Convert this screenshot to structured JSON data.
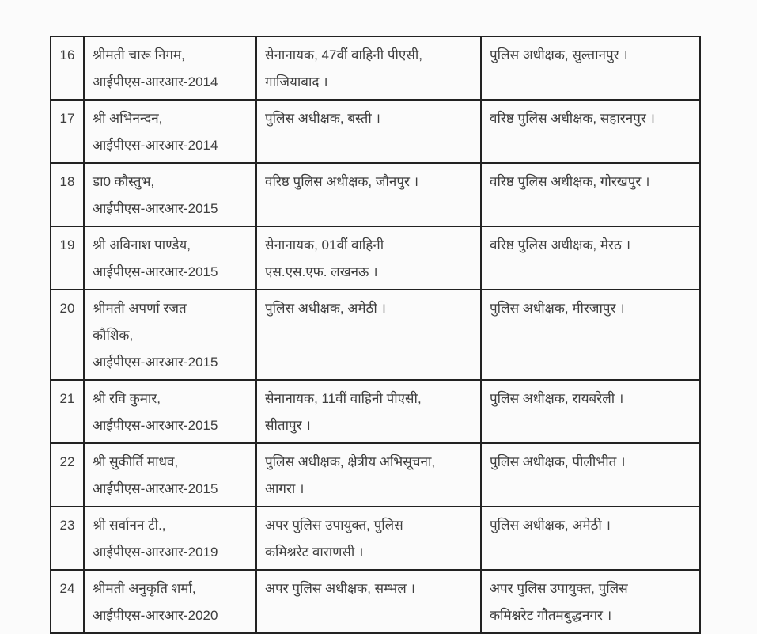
{
  "colors": {
    "page_background": "#fbfbfb",
    "cell_background": "#fbfbfb",
    "table_border": "#222222",
    "text": "#3d3d3d"
  },
  "table": {
    "rows": [
      {
        "serial": "16",
        "name": [
          "श्रीमती चारू निगम,",
          "आईपीएस-आरआर-2014"
        ],
        "current_post": [
          "सेनानायक, 47वीं वाहिनी पीएसी,",
          "गाजियाबाद ।"
        ],
        "new_post": [
          "पुलिस अधीक्षक, सुल्तानपुर ।"
        ]
      },
      {
        "serial": "17",
        "name": [
          "श्री अभिनन्दन,",
          "आईपीएस-आरआर-2014"
        ],
        "current_post": [
          "पुलिस अधीक्षक, बस्ती ।"
        ],
        "new_post": [
          "वरिष्ठ पुलिस अधीक्षक, सहारनपुर ।"
        ]
      },
      {
        "serial": "18",
        "name": [
          "डा0 कौस्तुभ,",
          "आईपीएस-आरआर-2015"
        ],
        "current_post": [
          "वरिष्ठ पुलिस अधीक्षक, जौनपुर ।"
        ],
        "new_post": [
          "वरिष्ठ पुलिस अधीक्षक, गोरखपुर ।"
        ]
      },
      {
        "serial": "19",
        "name": [
          "श्री अविनाश पाण्डेय,",
          "आईपीएस-आरआर-2015"
        ],
        "current_post": [
          "सेनानायक, 01वीं वाहिनी",
          "एस.एस.एफ. लखनऊ ।"
        ],
        "new_post": [
          "वरिष्ठ पुलिस अधीक्षक, मेरठ ।"
        ]
      },
      {
        "serial": "20",
        "name": [
          "श्रीमती अपर्णा रजत",
          "कौशिक,",
          "आईपीएस-आरआर-2015"
        ],
        "current_post": [
          "पुलिस अधीक्षक, अमेठी ।"
        ],
        "new_post": [
          "पुलिस अधीक्षक, मीरजापुर ।"
        ]
      },
      {
        "serial": "21",
        "name": [
          "श्री रवि कुमार,",
          "आईपीएस-आरआर-2015"
        ],
        "current_post": [
          "सेनानायक, 11वीं वाहिनी पीएसी,",
          "सीतापुर ।"
        ],
        "new_post": [
          "पुलिस अधीक्षक, रायबरेली ।"
        ]
      },
      {
        "serial": "22",
        "name": [
          "श्री सुकीर्ति माधव,",
          "आईपीएस-आरआर-2015"
        ],
        "current_post": [
          "पुलिस अधीक्षक, क्षेत्रीय अभिसूचना,",
          "आगरा ।"
        ],
        "new_post": [
          "पुलिस अधीक्षक, पीलीभीत ।"
        ]
      },
      {
        "serial": "23",
        "name": [
          "श्री सर्वानन टी.,",
          "आईपीएस-आरआर-2019"
        ],
        "current_post": [
          "अपर पुलिस उपायुक्त, पुलिस",
          "कमिश्नरेट वाराणसी ।"
        ],
        "new_post": [
          "पुलिस अधीक्षक, अमेठी ।"
        ]
      },
      {
        "serial": "24",
        "name": [
          "श्रीमती अनुकृति शर्मा,",
          "आईपीएस-आरआर-2020"
        ],
        "current_post": [
          "अपर पुलिस अधीक्षक, सम्भल ।"
        ],
        "new_post": [
          "अपर पुलिस उपायुक्त, पुलिस",
          "कमिश्नरेट गौतमबुद्धनगर ।"
        ]
      }
    ]
  }
}
